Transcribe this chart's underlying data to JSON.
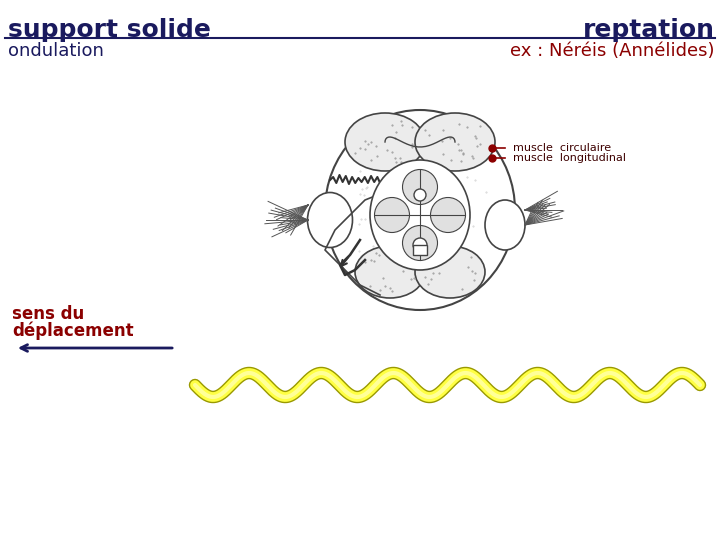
{
  "background_color": "#ffffff",
  "title_left": "support solide",
  "title_right": "reptation",
  "title_color": "#1a1a5e",
  "title_fontsize": 18,
  "title_bold": true,
  "subtitle_left": "ondulation",
  "subtitle_right": "ex : Néréis (Annélides)",
  "subtitle_color_left": "#1a1a5e",
  "subtitle_color_right": "#8b0000",
  "subtitle_fontsize": 13,
  "line_color": "#1a1a5e",
  "label1": "muscle  circulaire",
  "label2": "muscle  longitudinal",
  "label_color": "#3d0000",
  "label_fontsize": 8,
  "arrow_label_line1": "sens du",
  "arrow_label_line2": "déplacement",
  "arrow_label_color": "#8b0000",
  "arrow_label_fontsize": 12,
  "dot_color": "#8b0000",
  "worm_body_color": "#ffff99",
  "worm_body_fill": "#ffff00",
  "worm_outline_color": "#999900",
  "worm_spike_color": "#888844"
}
